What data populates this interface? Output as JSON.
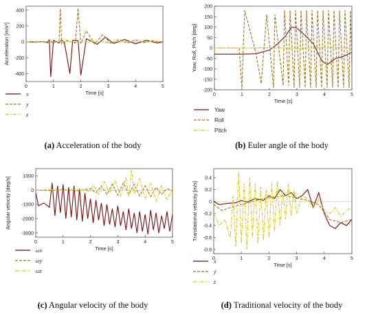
{
  "colors": {
    "series1": "#6e0f0f",
    "series2": "#a0741c",
    "series3": "#d8c800"
  },
  "chart_data": [
    {
      "type": "line",
      "xlabel": "Time [s]",
      "ylabel": "Acceleration [m/s²]",
      "xlim": [
        0,
        5
      ],
      "ylim": [
        -500,
        450
      ],
      "xticks": [
        "0",
        "1",
        "2",
        "3",
        "4",
        "5"
      ],
      "yticks": [
        "400",
        "200",
        "0",
        "-200",
        "-400"
      ],
      "ytick_values": [
        400,
        200,
        0,
        -200,
        -400
      ],
      "legend": [
        "x",
        "y",
        "z"
      ],
      "caption_label": "(a)",
      "caption_text": "Acceleration of the body",
      "series": [
        {
          "name": "x",
          "x": [
            0,
            0.3,
            0.6,
            0.8,
            0.85,
            0.9,
            1.0,
            1.2,
            1.3,
            1.4,
            1.6,
            1.7,
            1.9,
            2.0,
            2.2,
            2.6,
            2.9,
            3.2,
            3.6,
            4.0,
            4.4,
            4.8,
            5.0
          ],
          "y": [
            0,
            -3,
            5,
            -10,
            30,
            -440,
            20,
            -15,
            25,
            -10,
            -400,
            20,
            15,
            -420,
            40,
            -30,
            60,
            -20,
            30,
            -25,
            20,
            -15,
            0
          ]
        },
        {
          "name": "y",
          "x": [
            0,
            0.3,
            0.6,
            0.9,
            1.0,
            1.1,
            1.2,
            1.25,
            1.3,
            1.5,
            1.8,
            1.9,
            2.0,
            2.2,
            2.5,
            2.8,
            3.1,
            3.4,
            3.7,
            4.0,
            4.3,
            4.6,
            5.0
          ],
          "y": [
            0,
            5,
            -5,
            10,
            -20,
            15,
            -10,
            420,
            -30,
            20,
            -15,
            425,
            -20,
            140,
            -25,
            90,
            -20,
            30,
            -15,
            25,
            -10,
            15,
            0
          ]
        },
        {
          "name": "z",
          "x": [
            0,
            0.5,
            1.0,
            1.5,
            2.0,
            2.5,
            3.0,
            3.5,
            4.0,
            4.5,
            5.0
          ],
          "y": [
            0,
            2,
            -4,
            6,
            -3,
            8,
            -10,
            12,
            -8,
            6,
            0
          ]
        }
      ]
    },
    {
      "type": "line",
      "xlabel": "Time [s]",
      "ylabel": "Yaw, Roll, Pitch [deg]",
      "xlim": [
        0,
        5
      ],
      "ylim": [
        -200,
        200
      ],
      "xticks": [
        "0",
        "1",
        "2",
        "3",
        "4",
        "5"
      ],
      "yticks": [
        "200",
        "150",
        "100",
        "50",
        "0",
        "-50",
        "-100",
        "-150",
        "-200"
      ],
      "ytick_values": [
        200,
        150,
        100,
        50,
        0,
        -50,
        -100,
        -150,
        -200
      ],
      "legend": [
        "Yaw",
        "Roll",
        "Pitch"
      ],
      "caption_label": "(b)",
      "caption_text": "Euler angle of the body",
      "series": [
        {
          "name": "Yaw",
          "x": [
            0,
            1.0,
            1.5,
            2.0,
            2.3,
            2.6,
            2.8,
            3.0,
            3.3,
            3.6,
            3.9,
            4.1,
            4.4,
            4.7,
            5.0
          ],
          "y": [
            -30,
            -30,
            -28,
            -10,
            20,
            60,
            100,
            95,
            60,
            20,
            -60,
            -80,
            -50,
            -40,
            -20
          ]
        },
        {
          "name": "Roll",
          "x": [
            0,
            0.9,
            1.0,
            1.1,
            1.3,
            1.5,
            1.65,
            1.7,
            1.9,
            2.15,
            2.2,
            2.5,
            2.55,
            2.7,
            2.75,
            2.9,
            2.95,
            3.1,
            3.15,
            3.3,
            3.35,
            3.5,
            3.55,
            3.7,
            3.75,
            3.9,
            3.95,
            4.1,
            4.15,
            4.3,
            4.35,
            4.5,
            4.55,
            4.7,
            4.75,
            4.9,
            4.95,
            5.0
          ],
          "y": [
            0,
            0,
            -190,
            180,
            80,
            -20,
            -130,
            -170,
            160,
            -190,
            160,
            -180,
            180,
            -180,
            180,
            -190,
            180,
            -190,
            180,
            -190,
            180,
            -190,
            180,
            -190,
            180,
            -190,
            180,
            -190,
            180,
            -190,
            180,
            -190,
            180,
            -190,
            180,
            -190,
            180,
            -100
          ]
        },
        {
          "name": "Pitch",
          "x": [
            0,
            1.0,
            2.0,
            3.0,
            4.0,
            5.0
          ],
          "y": [
            0,
            0,
            2,
            -3,
            4,
            0
          ]
        }
      ]
    },
    {
      "type": "line",
      "xlabel": "Time [s]",
      "ylabel": "Angular velocity [deg/s]",
      "xlim": [
        0,
        5
      ],
      "ylim": [
        -3300,
        1500
      ],
      "xticks": [
        "0",
        "1",
        "2",
        "3",
        "4",
        "5"
      ],
      "yticks": [
        "1000",
        "0",
        "-1000",
        "-2000",
        "-3000"
      ],
      "ytick_values": [
        1000,
        0,
        -1000,
        -2000,
        -3000
      ],
      "legend": [
        "ωx",
        "ωy",
        "ωz"
      ],
      "caption_label": "(c)",
      "caption_text": "Angular velocity of the body",
      "series": [
        {
          "name": "ωx",
          "x": [
            0,
            0.1,
            0.3,
            0.5,
            0.6,
            0.7,
            0.8,
            0.9,
            1.0,
            1.1,
            1.2,
            1.3,
            1.4,
            1.5,
            1.6,
            1.7,
            1.8,
            1.9,
            2.0,
            2.1,
            2.2,
            2.3,
            2.4,
            2.5,
            2.6,
            2.7,
            2.8,
            2.9,
            3.0,
            3.1,
            3.2,
            3.3,
            3.4,
            3.5,
            3.6,
            3.7,
            3.8,
            3.9,
            4.0,
            4.1,
            4.2,
            4.3,
            4.4,
            4.5,
            4.6,
            4.7,
            4.8,
            4.9,
            5.0
          ],
          "y": [
            -200,
            -1100,
            -900,
            -1200,
            500,
            -1800,
            300,
            -1600,
            400,
            -2000,
            200,
            -1900,
            300,
            -2100,
            100,
            -2200,
            -200,
            -2000,
            -600,
            -2300,
            -700,
            -2100,
            -900,
            -2500,
            -1000,
            -2400,
            -1300,
            -2600,
            -1100,
            -2500,
            -1500,
            -2800,
            -1300,
            -2700,
            -1600,
            -3000,
            -1500,
            -2900,
            -1700,
            -3100,
            -1400,
            -2800,
            -1600,
            -3000,
            -1800,
            -2700,
            -1500,
            -2900,
            -1700
          ]
        },
        {
          "name": "ωy",
          "x": [
            0,
            0.5,
            1.0,
            1.5,
            2.0,
            2.2,
            2.4,
            2.6,
            2.8,
            3.0,
            3.2,
            3.4,
            3.6,
            3.8,
            4.0,
            4.2,
            4.4,
            4.6,
            4.8,
            5.0
          ],
          "y": [
            0,
            -20,
            30,
            -50,
            100,
            -200,
            300,
            -300,
            400,
            -350,
            500,
            -300,
            400,
            -400,
            300,
            -450,
            200,
            -300,
            100,
            -50
          ]
        },
        {
          "name": "ωz",
          "x": [
            0,
            0.5,
            1.0,
            1.5,
            2.0,
            2.1,
            2.3,
            2.5,
            2.7,
            2.9,
            3.1,
            3.3,
            3.4,
            3.5,
            3.6,
            3.8,
            4.0,
            4.2,
            4.4,
            4.6,
            4.8,
            5.0
          ],
          "y": [
            0,
            30,
            -20,
            60,
            -100,
            400,
            -300,
            600,
            -200,
            700,
            -400,
            900,
            -500,
            1400,
            -300,
            800,
            -600,
            500,
            -800,
            300,
            -700,
            100
          ]
        }
      ]
    },
    {
      "type": "line",
      "xlabel": "Time [s]",
      "ylabel": "Translational velocity [m/s]",
      "xlim": [
        0,
        5
      ],
      "ylim": [
        -0.87,
        0.55
      ],
      "xticks": [
        "0",
        "1",
        "2",
        "3",
        "4",
        "5"
      ],
      "yticks": [
        "0.4",
        "0.2",
        "0",
        "-0.2",
        "-0.4",
        "-0.6",
        "-0.8"
      ],
      "ytick_values": [
        0.4,
        0.2,
        0,
        -0.2,
        -0.4,
        -0.6,
        -0.8
      ],
      "legend": [
        "ẋ",
        "ẏ",
        "ż"
      ],
      "caption_label": "(d)",
      "caption_text": "Traditional velocity of the body",
      "series": [
        {
          "name": "ẋ",
          "x": [
            0,
            0.2,
            0.5,
            0.8,
            1.0,
            1.2,
            1.5,
            1.8,
            2.0,
            2.2,
            2.4,
            2.6,
            2.8,
            3.0,
            3.2,
            3.4,
            3.6,
            3.8,
            4.0,
            4.2,
            4.4,
            4.6,
            4.8,
            5.0
          ],
          "y": [
            0,
            -0.05,
            -0.03,
            -0.02,
            0.02,
            -0.01,
            0.05,
            0.02,
            0.1,
            0.05,
            0.2,
            0.1,
            0.15,
            0.05,
            0.1,
            0.2,
            -0.1,
            0.15,
            -0.2,
            -0.4,
            -0.45,
            -0.35,
            -0.4,
            -0.3
          ]
        },
        {
          "name": "ẏ",
          "x": [
            0,
            0.3,
            0.6,
            1.0,
            1.4,
            1.8,
            2.2,
            2.6,
            3.0,
            3.4,
            3.8,
            4.2,
            4.6,
            5.0
          ],
          "y": [
            -0.05,
            -0.15,
            -0.1,
            -0.05,
            0.0,
            0.05,
            0.08,
            0.1,
            0.06,
            0.02,
            -0.05,
            -0.3,
            -0.35,
            -0.3
          ]
        },
        {
          "name": "ż",
          "x": [
            0,
            0.2,
            0.4,
            0.6,
            0.7,
            0.8,
            0.9,
            1.0,
            1.1,
            1.2,
            1.3,
            1.4,
            1.5,
            1.6,
            1.7,
            1.8,
            1.9,
            2.0,
            2.1,
            2.2,
            2.3,
            2.4,
            2.5,
            2.6,
            2.7,
            2.8,
            2.9,
            3.0,
            3.2,
            3.4,
            3.6,
            3.8,
            4.0,
            4.2,
            4.4,
            4.6,
            4.8,
            5.0
          ],
          "y": [
            -0.2,
            -0.4,
            -0.3,
            -0.6,
            0.1,
            -0.75,
            0.5,
            -0.7,
            0.3,
            -0.8,
            0.4,
            -0.6,
            0.3,
            -0.7,
            0.25,
            -0.65,
            0.2,
            -0.6,
            0.3,
            -0.5,
            0.35,
            -0.4,
            0.2,
            -0.3,
            0.3,
            -0.25,
            0.2,
            -0.2,
            0.1,
            0.05,
            -0.1,
            0.05,
            -0.15,
            -0.2,
            -0.1,
            -0.25,
            -0.15,
            -0.1
          ]
        }
      ]
    }
  ]
}
